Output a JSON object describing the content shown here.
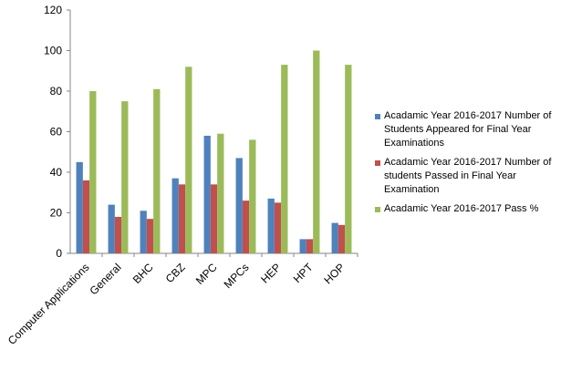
{
  "chart_data": {
    "type": "bar",
    "categories": [
      "Computer Applications",
      "General",
      "BHC",
      "CBZ",
      "MPC",
      "MPCs",
      "HEP",
      "HPT",
      "HOP"
    ],
    "series": [
      {
        "name": "Acadamic Year  2016-2017 Number of Students Appeared for Final Year Examinations",
        "color": "#4f81bd",
        "values": [
          45,
          24,
          21,
          37,
          58,
          47,
          27,
          7,
          15
        ]
      },
      {
        "name": "Acadamic Year  2016-2017 Number of students Passed in  Final Year Examination",
        "color": "#c0504d",
        "values": [
          36,
          18,
          17,
          34,
          34,
          26,
          25,
          7,
          14
        ]
      },
      {
        "name": "Acadamic Year  2016-2017 Pass %",
        "color": "#9bbb59",
        "values": [
          80,
          75,
          81,
          92,
          59,
          56,
          93,
          100,
          93
        ]
      }
    ],
    "ylim": [
      0,
      120
    ],
    "yticks": [
      "0",
      "20",
      "40",
      "60",
      "80",
      "100",
      "120"
    ],
    "grid": false,
    "legend_position": "right",
    "title": "",
    "xlabel": "",
    "ylabel": ""
  }
}
